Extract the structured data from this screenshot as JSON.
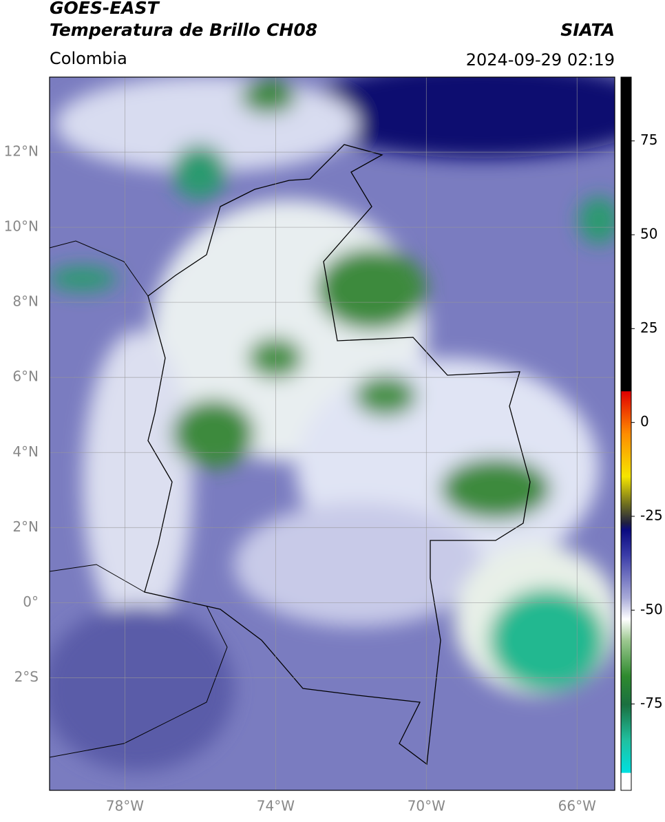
{
  "header": {
    "title": "GOES-EAST",
    "subtitle": "Temperatura de Brillo CH08",
    "source": "SIATA",
    "region": "Colombia",
    "timestamp": "2024-09-29 02:19"
  },
  "map": {
    "lon_range": [
      -80,
      -65
    ],
    "lat_range": [
      -5,
      14
    ],
    "lon_ticks": [
      {
        "value": -78,
        "label": "78°W"
      },
      {
        "value": -74,
        "label": "74°W"
      },
      {
        "value": -70,
        "label": "70°W"
      },
      {
        "value": -66,
        "label": "66°W"
      }
    ],
    "lat_ticks": [
      {
        "value": 12,
        "label": "12°N"
      },
      {
        "value": 10,
        "label": "10°N"
      },
      {
        "value": 8,
        "label": "8°N"
      },
      {
        "value": 6,
        "label": "6°N"
      },
      {
        "value": 4,
        "label": "4°N"
      },
      {
        "value": 2,
        "label": "2°N"
      },
      {
        "value": 0,
        "label": "0°"
      },
      {
        "value": -2,
        "label": "2°S"
      }
    ]
  },
  "colorbar": {
    "range": [
      -98,
      92
    ],
    "ticks": [
      75,
      50,
      25,
      0,
      -25,
      -50,
      -75
    ]
  }
}
